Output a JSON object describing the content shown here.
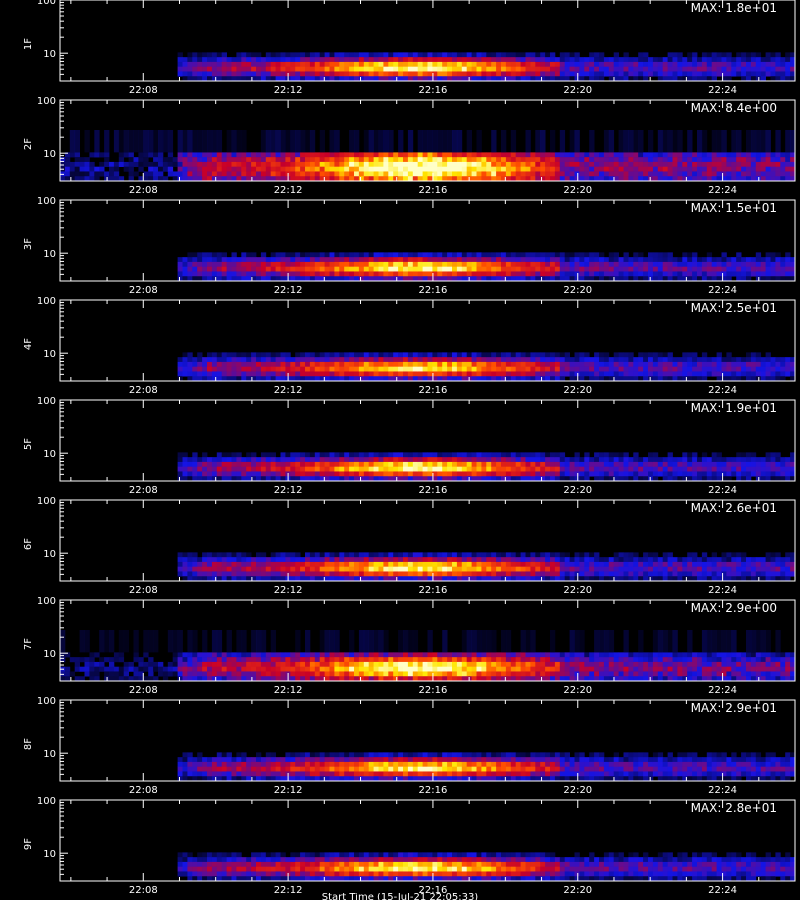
{
  "chart_data": [
    {
      "type": "heatmap",
      "ylabel": "1F",
      "max_label": "MAX: 1.8e+01",
      "peak": 1.0,
      "noise": 0.03,
      "floor": 1.0
    },
    {
      "type": "heatmap",
      "ylabel": "2F",
      "max_label": "MAX: 8.4e+00",
      "peak": 1.0,
      "noise": 0.3,
      "floor": 1.9
    },
    {
      "type": "heatmap",
      "ylabel": "3F",
      "max_label": "MAX: 1.5e+01",
      "peak": 0.95,
      "noise": 0.05,
      "floor": 1.0
    },
    {
      "type": "heatmap",
      "ylabel": "4F",
      "max_label": "MAX: 2.5e+01",
      "peak": 0.92,
      "noise": 0.03,
      "floor": 1.0
    },
    {
      "type": "heatmap",
      "ylabel": "5F",
      "max_label": "MAX: 1.9e+01",
      "peak": 0.98,
      "noise": 0.04,
      "floor": 1.0
    },
    {
      "type": "heatmap",
      "ylabel": "6F",
      "max_label": "MAX: 2.6e+01",
      "peak": 0.95,
      "noise": 0.03,
      "floor": 1.0
    },
    {
      "type": "heatmap",
      "ylabel": "7F",
      "max_label": "MAX: 2.9e+00",
      "peak": 0.9,
      "noise": 0.25,
      "floor": 1.4
    },
    {
      "type": "heatmap",
      "ylabel": "8F",
      "max_label": "MAX: 2.9e+01",
      "peak": 0.92,
      "noise": 0.03,
      "floor": 1.0
    },
    {
      "type": "heatmap",
      "ylabel": "9F",
      "max_label": "MAX: 2.8e+01",
      "peak": 0.97,
      "noise": 0.04,
      "floor": 1.0
    }
  ],
  "shared_axes": {
    "x_ticks": [
      "22:08",
      "22:12",
      "22:16",
      "22:20",
      "22:24"
    ],
    "x_tick_minutes": [
      8,
      12,
      16,
      20,
      24
    ],
    "x_range_minutes": [
      5.7,
      26.0
    ],
    "y_ticks": [
      "10",
      "100"
    ],
    "y_tick_values": [
      10,
      100
    ],
    "y_range": [
      3,
      100
    ],
    "y_scale": "log",
    "signal_start_minute": 9.0,
    "signal_fade_minute": 19.5
  },
  "footer_text": "Start Time (15-Jul-21 22:05:33)"
}
